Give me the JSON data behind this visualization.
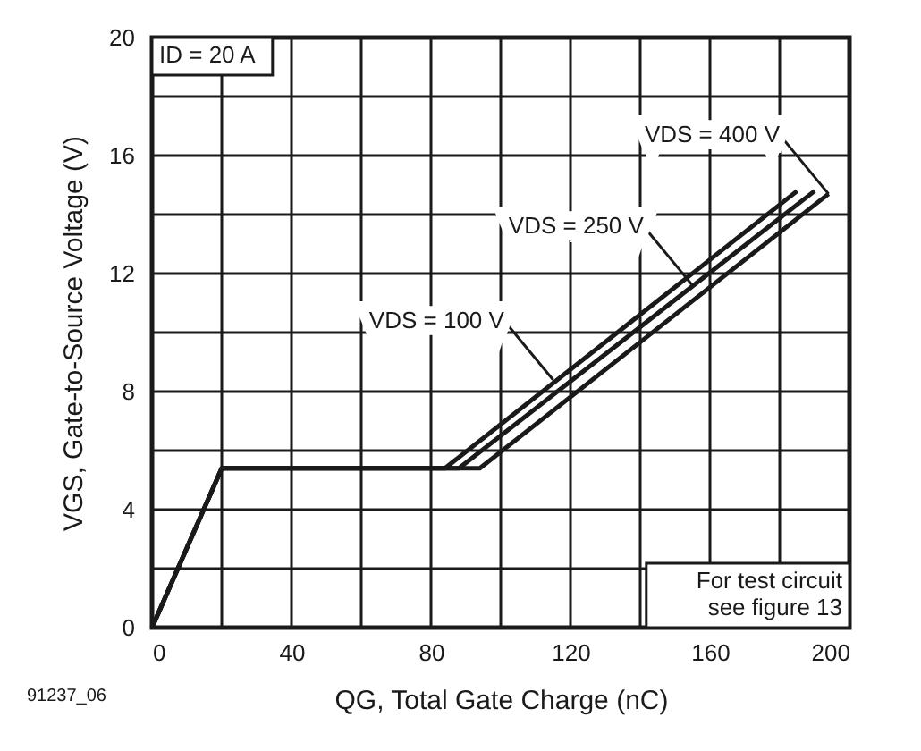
{
  "chart_data": {
    "type": "line",
    "xlabel": "QG, Total Gate Charge (nC)",
    "ylabel": "VGS, Gate-to-Source Voltage (V)",
    "series": [
      {
        "color": "#1a1a1a",
        "x": [
          0,
          20,
          84,
          185
        ],
        "values": [
          0,
          5.4,
          5.4,
          14.8
        ]
      },
      {
        "color": "#1a1a1a",
        "x": [
          0,
          20,
          88,
          190
        ],
        "values": [
          0,
          5.4,
          5.4,
          14.8
        ]
      },
      {
        "color": "#1a1a1a",
        "x": [
          0,
          20,
          94,
          194
        ],
        "values": [
          0,
          5.4,
          5.4,
          14.7
        ]
      }
    ],
    "xlim": [
      0,
      200
    ],
    "ylim": [
      0,
      20
    ],
    "xticks": [
      0,
      {
        "value": 20,
        "label": null
      },
      40,
      {
        "value": 60,
        "label": null
      },
      80,
      {
        "value": 100,
        "label": null
      },
      120,
      {
        "value": 140,
        "label": null
      },
      160,
      {
        "value": 180,
        "label": null
      },
      200
    ],
    "yticks": [
      0,
      {
        "value": 2,
        "label": null
      },
      4,
      {
        "value": 6,
        "label": null
      },
      8,
      {
        "value": 10,
        "label": null
      },
      12,
      {
        "value": 14,
        "label": null
      },
      16,
      {
        "value": 18,
        "label": null
      },
      20
    ],
    "annotations": [
      "ID = 20 A",
      "For test circuit see figure 13",
      "91237_06",
      {
        "text": "VDS = 100 V",
        "x": 115,
        "y": 8.4
      },
      {
        "text": "VDS = 250 V",
        "x": 155,
        "y": 11.6
      },
      {
        "text": "VDS = 400 V",
        "x": 194,
        "y": 14.7
      }
    ],
    "grid": true,
    "legend": false,
    "marker": "none",
    "line_style": "solid"
  }
}
